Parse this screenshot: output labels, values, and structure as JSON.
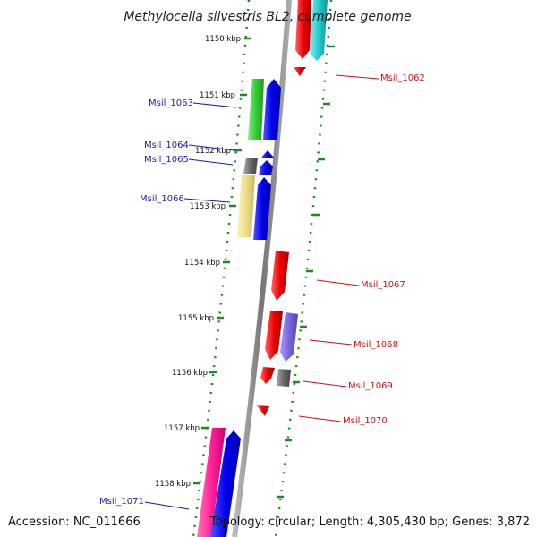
{
  "title": "Methylocella silvestris BL2, complete genome",
  "footer": {
    "accession": "Accession: NC_011666",
    "topology": "Topology: circular; Length: 4,305,430 bp; Genes: 3,872"
  },
  "ticks": [
    "1150 kbp",
    "1151 kbp",
    "1152 kbp",
    "1153 kbp",
    "1154 kbp",
    "1155 kbp",
    "1156 kbp",
    "1157 kbp",
    "1158 kbp"
  ],
  "labels": {
    "left": [
      "Msil_1063",
      "Msil_1064",
      "Msil_1065",
      "Msil_1066",
      "Msil_1071"
    ],
    "right": [
      "Msil_1062",
      "Msil_1067",
      "Msil_1068",
      "Msil_1069",
      "Msil_1070"
    ]
  },
  "colors": {
    "backbone": "#8a8a8a",
    "ticks": "#1f8a1f",
    "red": "#ee1111",
    "blue": "#0a0af0",
    "green": "#33cc33",
    "gray": "#666666",
    "cream": "#eedd88",
    "cyan": "#22cccc",
    "purple": "#7766dd",
    "pink": "#ff2299",
    "label_blue": "#1a1aaa",
    "label_red": "#cc1111"
  }
}
